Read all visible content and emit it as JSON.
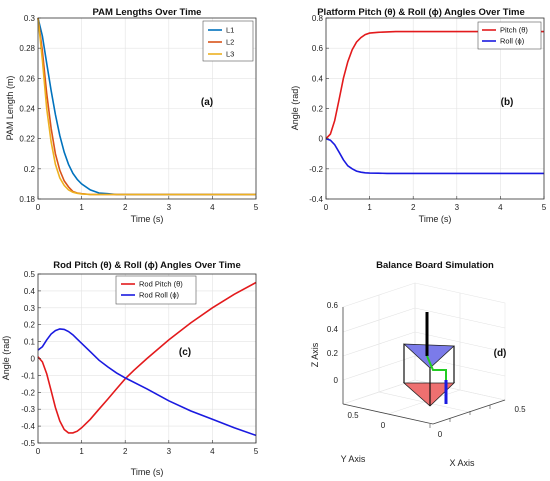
{
  "chart_data": [
    {
      "type": "line",
      "title": "PAM Lengths Over Time",
      "xlabel": "Time (s)",
      "ylabel": "PAM Length (m)",
      "xlim": [
        0,
        5
      ],
      "ylim": [
        0.18,
        0.3
      ],
      "xticks": [
        0,
        1,
        2,
        3,
        4,
        5
      ],
      "yticks": [
        0.18,
        0.2,
        0.22,
        0.24,
        0.26,
        0.28,
        0.3
      ],
      "grid": true,
      "legend": "top-right",
      "annotation": "(a)",
      "series": [
        {
          "name": "L1",
          "color": "#0072BD",
          "x": [
            0,
            0.1,
            0.2,
            0.3,
            0.4,
            0.5,
            0.6,
            0.7,
            0.8,
            0.9,
            1.0,
            1.2,
            1.4,
            1.6,
            1.8,
            2.0,
            2.5,
            3,
            4,
            5
          ],
          "y": [
            0.3,
            0.288,
            0.27,
            0.252,
            0.236,
            0.222,
            0.211,
            0.203,
            0.197,
            0.193,
            0.19,
            0.186,
            0.184,
            0.1835,
            0.183,
            0.183,
            0.183,
            0.183,
            0.183,
            0.183
          ]
        },
        {
          "name": "L2",
          "color": "#D95319",
          "x": [
            0,
            0.1,
            0.2,
            0.3,
            0.4,
            0.5,
            0.6,
            0.7,
            0.8,
            0.9,
            1.0,
            1.2,
            1.4,
            1.6,
            2.0,
            2.5,
            3,
            4,
            5
          ],
          "y": [
            0.3,
            0.278,
            0.25,
            0.227,
            0.21,
            0.199,
            0.192,
            0.188,
            0.185,
            0.184,
            0.1835,
            0.183,
            0.183,
            0.183,
            0.183,
            0.183,
            0.183,
            0.183,
            0.183
          ]
        },
        {
          "name": "L3",
          "color": "#EDB120",
          "x": [
            0,
            0.1,
            0.2,
            0.3,
            0.4,
            0.5,
            0.6,
            0.7,
            0.8,
            0.9,
            1.0,
            1.2,
            1.4,
            2.0,
            2.5,
            3,
            4,
            5
          ],
          "y": [
            0.3,
            0.272,
            0.24,
            0.218,
            0.203,
            0.194,
            0.189,
            0.186,
            0.1845,
            0.1838,
            0.1834,
            0.183,
            0.183,
            0.183,
            0.183,
            0.183,
            0.183,
            0.183
          ]
        }
      ]
    },
    {
      "type": "line",
      "title": "Platform Pitch (θ) & Roll (ϕ) Angles Over Time",
      "xlabel": "Time (s)",
      "ylabel": "Angle (rad)",
      "xlim": [
        0,
        5
      ],
      "ylim": [
        -0.4,
        0.8
      ],
      "xticks": [
        0,
        1,
        2,
        3,
        4,
        5
      ],
      "yticks": [
        -0.4,
        -0.2,
        0,
        0.2,
        0.4,
        0.6,
        0.8
      ],
      "grid": true,
      "legend": "top-right",
      "annotation": "(b)",
      "series": [
        {
          "name": "Pitch (θ)",
          "color": "#E31A1C",
          "x": [
            0,
            0.1,
            0.2,
            0.3,
            0.4,
            0.5,
            0.6,
            0.7,
            0.8,
            0.9,
            1.0,
            1.2,
            1.4,
            1.6,
            1.8,
            2.0,
            2.5,
            3,
            4,
            5
          ],
          "y": [
            0,
            0.03,
            0.12,
            0.26,
            0.4,
            0.51,
            0.59,
            0.64,
            0.67,
            0.69,
            0.7,
            0.705,
            0.708,
            0.71,
            0.71,
            0.71,
            0.71,
            0.71,
            0.71,
            0.71
          ]
        },
        {
          "name": "Roll (ϕ)",
          "color": "#1A1AE0",
          "x": [
            0,
            0.1,
            0.2,
            0.3,
            0.4,
            0.5,
            0.6,
            0.7,
            0.8,
            0.9,
            1.0,
            1.2,
            1.4,
            1.6,
            2.0,
            2.5,
            3,
            4,
            5
          ],
          "y": [
            0,
            -0.01,
            -0.04,
            -0.09,
            -0.14,
            -0.18,
            -0.2,
            -0.215,
            -0.222,
            -0.226,
            -0.228,
            -0.229,
            -0.23,
            -0.23,
            -0.23,
            -0.23,
            -0.23,
            -0.23,
            -0.23
          ]
        }
      ]
    },
    {
      "type": "line",
      "title": "Rod Pitch (θ) & Roll (ϕ) Angles Over Time",
      "xlabel": "Time (s)",
      "ylabel": "Angle (rad)",
      "xlim": [
        0,
        5
      ],
      "ylim": [
        -0.5,
        0.5
      ],
      "xticks": [
        0,
        1,
        2,
        3,
        4,
        5
      ],
      "yticks": [
        -0.5,
        -0.4,
        -0.3,
        -0.2,
        -0.1,
        0,
        0.1,
        0.2,
        0.3,
        0.4,
        0.5
      ],
      "grid": true,
      "legend": "top-center",
      "annotation": "(c)",
      "series": [
        {
          "name": "Rod Pitch (θ)",
          "color": "#E31A1C",
          "x": [
            0,
            0.1,
            0.2,
            0.3,
            0.4,
            0.5,
            0.6,
            0.7,
            0.8,
            0.9,
            1.0,
            1.2,
            1.4,
            1.6,
            1.8,
            2.0,
            2.2,
            2.5,
            3,
            3.5,
            4,
            4.5,
            5
          ],
          "y": [
            0.01,
            -0.02,
            -0.09,
            -0.19,
            -0.29,
            -0.37,
            -0.42,
            -0.44,
            -0.44,
            -0.43,
            -0.41,
            -0.36,
            -0.3,
            -0.24,
            -0.18,
            -0.12,
            -0.07,
            0.0,
            0.11,
            0.21,
            0.3,
            0.38,
            0.45
          ]
        },
        {
          "name": "Rod Roll (ϕ)",
          "color": "#1A1AE0",
          "x": [
            0,
            0.1,
            0.2,
            0.3,
            0.4,
            0.5,
            0.6,
            0.7,
            0.8,
            0.9,
            1.0,
            1.2,
            1.4,
            1.6,
            1.8,
            2.0,
            2.5,
            3,
            3.5,
            4,
            4.5,
            5
          ],
          "y": [
            0.05,
            0.07,
            0.11,
            0.145,
            0.165,
            0.175,
            0.172,
            0.16,
            0.14,
            0.115,
            0.09,
            0.04,
            -0.01,
            -0.05,
            -0.085,
            -0.115,
            -0.18,
            -0.25,
            -0.31,
            -0.36,
            -0.41,
            -0.455
          ]
        }
      ]
    },
    {
      "type": "3d-scene",
      "title": "Balance Board Simulation",
      "xlabel": "X Axis",
      "ylabel": "Y Axis",
      "zlabel": "Z Axis",
      "xticks": [
        0,
        0.5
      ],
      "yticks": [
        0,
        0.5
      ],
      "zticks": [
        0,
        0.2,
        0.4,
        0.6
      ],
      "annotation": "(d)",
      "colors": {
        "top_plate": "#7B7BEA",
        "bottom_plate": "#EE7070",
        "rod": "#000000",
        "link_green": "#22CC22",
        "link_blue": "#1A1AE0"
      }
    }
  ]
}
